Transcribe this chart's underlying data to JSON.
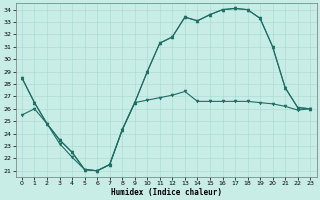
{
  "xlabel": "Humidex (Indice chaleur)",
  "bg_color": "#c8ece6",
  "line_color": "#1e6e64",
  "grid_color": "#a8d8d0",
  "xlim": [
    -0.5,
    23.5
  ],
  "ylim": [
    20.5,
    34.5
  ],
  "xticks": [
    0,
    1,
    2,
    3,
    4,
    5,
    6,
    7,
    8,
    9,
    10,
    11,
    12,
    13,
    14,
    15,
    16,
    17,
    18,
    19,
    20,
    21,
    22,
    23
  ],
  "yticks": [
    21,
    22,
    23,
    24,
    25,
    26,
    27,
    28,
    29,
    30,
    31,
    32,
    33,
    34
  ],
  "line1_x": [
    0,
    1,
    2,
    3,
    4,
    5,
    6,
    7,
    8,
    9,
    10,
    11,
    12,
    13,
    14,
    15,
    16,
    17,
    18,
    19,
    20,
    21,
    22,
    23
  ],
  "line1_y": [
    28.5,
    26.5,
    24.8,
    23.2,
    22.1,
    21.1,
    21.0,
    21.5,
    24.3,
    26.5,
    29.0,
    31.3,
    31.8,
    33.4,
    33.1,
    33.6,
    34.0,
    34.1,
    34.0,
    33.3,
    31.0,
    27.7,
    26.1,
    26.0
  ],
  "line1_marker": "v",
  "line2_x": [
    0,
    1,
    2,
    3,
    4,
    5,
    6,
    7,
    8,
    9,
    10,
    11,
    12,
    13,
    14,
    15,
    16,
    17,
    18,
    19,
    20,
    21,
    22,
    23
  ],
  "line2_y": [
    28.5,
    26.5,
    24.8,
    23.5,
    22.5,
    21.1,
    21.0,
    21.5,
    24.3,
    26.5,
    29.0,
    31.3,
    31.8,
    33.4,
    33.1,
    33.6,
    34.0,
    34.1,
    34.0,
    33.3,
    31.0,
    27.7,
    26.1,
    26.0
  ],
  "line2_marker": "^",
  "line3_x": [
    0,
    1,
    2,
    3,
    4,
    5,
    6,
    7,
    8,
    9,
    10,
    11,
    12,
    13,
    14,
    15,
    16,
    17,
    18,
    19,
    20,
    21,
    22,
    23
  ],
  "line3_y": [
    25.5,
    26.0,
    24.8,
    23.5,
    22.5,
    21.1,
    21.0,
    21.5,
    24.3,
    26.5,
    26.7,
    26.9,
    27.1,
    27.4,
    26.6,
    26.6,
    26.6,
    26.6,
    26.6,
    26.5,
    26.4,
    26.2,
    25.9,
    26.0
  ],
  "line3_marker": "v",
  "figwidth": 3.2,
  "figheight": 2.0,
  "dpi": 100
}
